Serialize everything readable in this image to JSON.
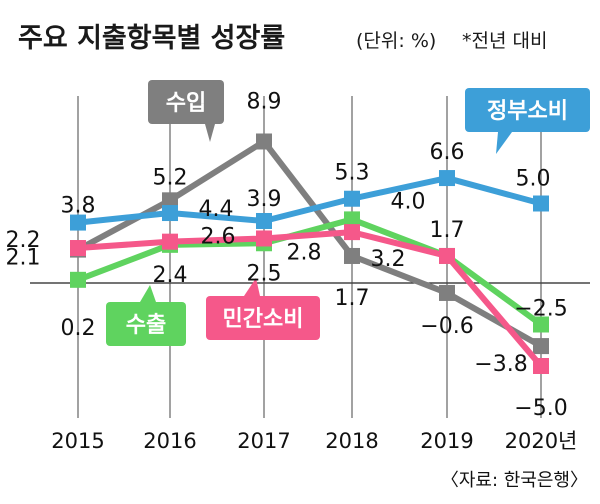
{
  "header": {
    "title": "주요 지출항목별 성장률",
    "unit": "(단위: %)",
    "note": "*전년 대비"
  },
  "source": "〈자료: 한국은행〉",
  "chart_data": {
    "type": "line",
    "title": "주요 지출항목별 성장률",
    "x": [
      "2015",
      "2016",
      "2017",
      "2018",
      "2019",
      "2020년"
    ],
    "ylim": [
      -6,
      10
    ],
    "grid": false,
    "series": [
      {
        "name": "정부소비",
        "color": "#3d9fd8",
        "values": [
          3.8,
          4.4,
          3.9,
          5.3,
          6.6,
          5.0
        ]
      },
      {
        "name": "수입",
        "color": "#7f7f7f",
        "values": [
          2.1,
          5.2,
          8.9,
          1.7,
          -0.6,
          -3.8
        ]
      },
      {
        "name": "수출",
        "color": "#5fd35f",
        "values": [
          0.2,
          2.4,
          2.5,
          4.0,
          1.7,
          -2.5
        ]
      },
      {
        "name": "민간소비",
        "color": "#f5588a",
        "values": [
          2.2,
          2.6,
          2.8,
          3.2,
          1.7,
          -5.0
        ]
      }
    ],
    "data_labels": [
      {
        "text": "3.8",
        "series": 0,
        "index": 0
      },
      {
        "text": "4.4",
        "series": 0,
        "index": 1
      },
      {
        "text": "3.9",
        "series": 0,
        "index": 2
      },
      {
        "text": "5.3",
        "series": 0,
        "index": 3
      },
      {
        "text": "6.6",
        "series": 0,
        "index": 4
      },
      {
        "text": "5.0",
        "series": 0,
        "index": 5
      },
      {
        "text": "2.1",
        "series": 1,
        "index": 0
      },
      {
        "text": "5.2",
        "series": 1,
        "index": 1
      },
      {
        "text": "8.9",
        "series": 1,
        "index": 2
      },
      {
        "text": "1.7",
        "series": 1,
        "index": 3
      },
      {
        "text": "−0.6",
        "series": 1,
        "index": 4
      },
      {
        "text": "−3.8",
        "series": 1,
        "index": 5
      },
      {
        "text": "0.2",
        "series": 2,
        "index": 0
      },
      {
        "text": "2.4",
        "series": 2,
        "index": 1
      },
      {
        "text": "2.5",
        "series": 2,
        "index": 2
      },
      {
        "text": "4.0",
        "series": 2,
        "index": 3
      },
      {
        "text": "1.7",
        "series": 2,
        "index": 4
      },
      {
        "text": "−2.5",
        "series": 2,
        "index": 5
      },
      {
        "text": "2.2",
        "series": 3,
        "index": 0
      },
      {
        "text": "2.6",
        "series": 3,
        "index": 1
      },
      {
        "text": "2.8",
        "series": 3,
        "index": 2
      },
      {
        "text": "3.2",
        "series": 3,
        "index": 3
      },
      {
        "text": "−5.0",
        "series": 3,
        "index": 5
      }
    ]
  }
}
